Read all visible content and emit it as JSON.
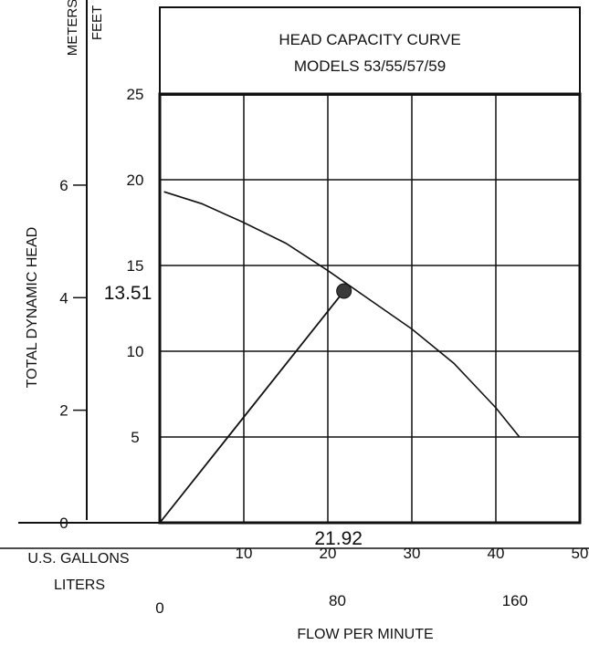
{
  "chart_data": {
    "type": "line",
    "title": "HEAD CAPACITY CURVE",
    "subtitle": "MODELS 53/55/57/59",
    "xlabel": "FLOW PER MINUTE",
    "ylabel": "TOTAL DYNAMIC HEAD",
    "x_unit_primary": "U.S. GALLONS",
    "x_unit_secondary": "LITERS",
    "y_unit_primary": "FEET",
    "y_unit_secondary": "METERS",
    "xlim": [
      0,
      50
    ],
    "ylim": [
      0,
      25
    ],
    "grid": true,
    "x_ticks": [
      10,
      20,
      30,
      40,
      50
    ],
    "x_ticks_liters": [
      0,
      80,
      160
    ],
    "y_ticks_feet": [
      5,
      10,
      15,
      20,
      25
    ],
    "y_ticks_meters": [
      0,
      2,
      4,
      6
    ],
    "series": [
      {
        "x": [
          0.5,
          5,
          10,
          15,
          20,
          25,
          30,
          35,
          40,
          42.8
        ],
        "y": [
          19.3,
          18.6,
          17.5,
          16.3,
          14.7,
          13.0,
          11.3,
          9.3,
          6.7,
          5.0
        ]
      }
    ],
    "operating_line": {
      "x": [
        0,
        21.92
      ],
      "y": [
        0,
        13.51
      ]
    },
    "annotations": [
      {
        "text": "13.51",
        "axis": "y",
        "value": 13.51
      },
      {
        "text": "21.92",
        "axis": "x",
        "value": 21.92
      }
    ],
    "marker": {
      "x": 21.92,
      "y": 13.51
    }
  }
}
